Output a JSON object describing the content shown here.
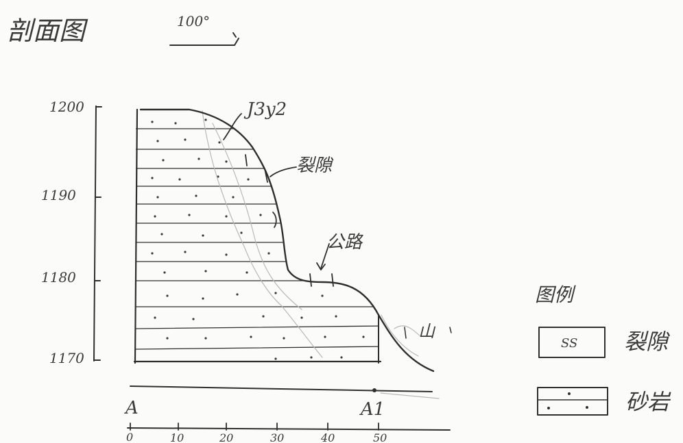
{
  "title": "剖面图",
  "direction": "100°",
  "elevation_axis": {
    "ticks": [
      "1200",
      "1190",
      "1180",
      "1170"
    ]
  },
  "distance_axis": {
    "ticks": [
      "0",
      "10",
      "20",
      "30",
      "40",
      "50"
    ]
  },
  "profile_ends": {
    "start": "A",
    "end": "A1"
  },
  "annotations": {
    "formation": "J3y2",
    "fracture": "裂隙",
    "road": "公路",
    "mountain": "山"
  },
  "legend": {
    "title": "图例",
    "items": [
      {
        "symbol": "SS",
        "label": "裂隙"
      },
      {
        "symbol": "dotted-sandstone",
        "label": "砂岩"
      }
    ]
  },
  "colors": {
    "ink": "#2e2e2e",
    "faint": "#b8b8b8",
    "paper": "#fbfbf9"
  }
}
